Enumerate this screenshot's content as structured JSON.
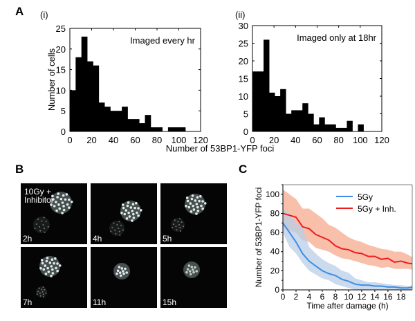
{
  "panels": {
    "A": "A",
    "B": "B",
    "C": "C"
  },
  "chart_data": [
    {
      "type": "bar",
      "id": "A-i",
      "sublabel": "(i)",
      "annotation": "Imaged every hr",
      "ylabel": "Number of cells",
      "xlabel": "Number of 53BP1-YFP foci",
      "bin_width": 5.3,
      "bin_start": 0,
      "values": [
        10,
        18,
        23,
        17,
        16,
        7,
        6,
        5,
        5,
        6,
        3,
        3,
        2,
        4,
        1,
        1,
        0,
        1,
        1,
        1
      ],
      "xlim": [
        0,
        120
      ],
      "ylim": [
        0,
        25
      ],
      "xticks": [
        "0",
        "20",
        "40",
        "60",
        "80",
        "100",
        "120"
      ],
      "yticks": [
        "0",
        "5",
        "10",
        "15",
        "20",
        "25"
      ]
    },
    {
      "type": "bar",
      "id": "A-ii",
      "sublabel": "(ii)",
      "annotation": "Imaged only at 18hr",
      "xlabel": "Number of 53BP1-YFP foci",
      "bin_width": 5.15,
      "bin_start": 0,
      "values": [
        17,
        17,
        26,
        11,
        10,
        12,
        5,
        6,
        6,
        8,
        5,
        2,
        4,
        2,
        2,
        1,
        1,
        3,
        0,
        2
      ],
      "xlim": [
        0,
        120
      ],
      "ylim": [
        0,
        30
      ],
      "xticks": [
        "0",
        "20",
        "40",
        "60",
        "80",
        "100",
        "120"
      ],
      "yticks": [
        "0",
        "5",
        "10",
        "15",
        "20",
        "25",
        "30"
      ]
    },
    {
      "type": "line",
      "id": "C",
      "xlabel": "Time after damage (h)",
      "ylabel": "Number of 53BP1-YFP foci",
      "xlim": [
        0,
        19.7
      ],
      "ylim": [
        0,
        110
      ],
      "xticks": [
        "0",
        "2",
        "4",
        "6",
        "8",
        "10",
        "12",
        "14",
        "16",
        "18"
      ],
      "yticks": [
        "0",
        "20",
        "40",
        "60",
        "80",
        "100"
      ],
      "legend_position": "top-right",
      "x": [
        0,
        1,
        2,
        3,
        4,
        5,
        6,
        7,
        8,
        9,
        10,
        11,
        12,
        13,
        14,
        15,
        16,
        17,
        18,
        19,
        20
      ],
      "series": [
        {
          "name": "5Gy",
          "color": "#3a8ee6",
          "band_color": "#b9cde6",
          "values": [
            70,
            60,
            50,
            38,
            30,
            25,
            20,
            17,
            15,
            11,
            9,
            6,
            5,
            5,
            4,
            4,
            3,
            3,
            2,
            2,
            3
          ],
          "upper": [
            85,
            80,
            70,
            65,
            45,
            38,
            32,
            28,
            25,
            20,
            18,
            12,
            10,
            8,
            8,
            7,
            6,
            5,
            5,
            4,
            5
          ],
          "lower": [
            60,
            45,
            38,
            28,
            20,
            16,
            12,
            10,
            6,
            4,
            2,
            0,
            0,
            0,
            0,
            0,
            0,
            0,
            0,
            0,
            0
          ]
        },
        {
          "name": "5Gy + Inh.",
          "color": "#ee1c1c",
          "band_color": "#f5a98f",
          "values": [
            80,
            78,
            76,
            66,
            64,
            58,
            55,
            52,
            46,
            43,
            42,
            39,
            38,
            35,
            35,
            32,
            33,
            29,
            30,
            28,
            27
          ],
          "upper": [
            105,
            100,
            95,
            85,
            85,
            80,
            75,
            68,
            65,
            60,
            55,
            52,
            50,
            47,
            45,
            43,
            42,
            40,
            40,
            37,
            33
          ],
          "lower": [
            65,
            62,
            60,
            52,
            50,
            44,
            42,
            40,
            36,
            33,
            32,
            30,
            28,
            26,
            25,
            23,
            24,
            22,
            22,
            22,
            21
          ]
        }
      ]
    }
  ],
  "microscopy": {
    "condition": [
      "10Gy +",
      "Inhibitor"
    ],
    "tiles": [
      "2h",
      "4h",
      "5h",
      "7h",
      "11h",
      "15h"
    ]
  }
}
